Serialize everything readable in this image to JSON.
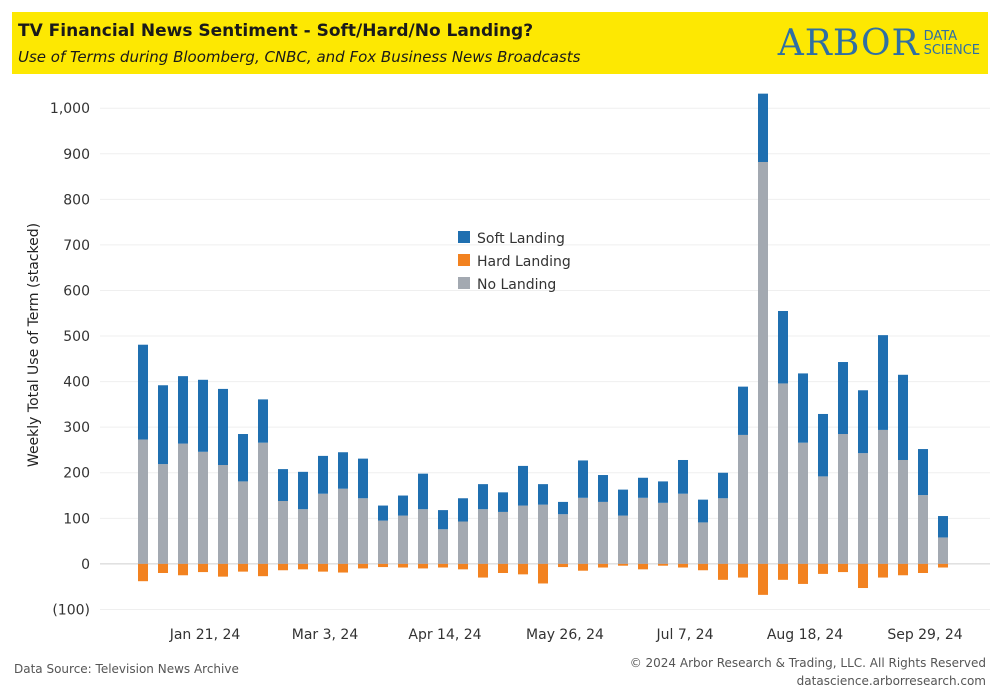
{
  "header": {
    "title": "TV Financial News Sentiment - Soft/Hard/No Landing?",
    "subtitle": "Use of Terms during Bloomberg, CNBC, and Fox Business News Broadcasts",
    "logo_main": "ARBOR",
    "logo_sub_1": "DATA",
    "logo_sub_2": "SCIENCE"
  },
  "footer": {
    "source": "Data Source: Television News Archive",
    "copyright": "© 2024 Arbor Research & Trading, LLC. All Rights Reserved",
    "website": "datascience.arborresearch.com"
  },
  "chart_data": {
    "type": "bar",
    "stacked": true,
    "ylabel": "Weekly Total Use of Term (stacked)",
    "ylim": [
      -110,
      1040
    ],
    "yticks": [
      -100,
      0,
      100,
      200,
      300,
      400,
      500,
      600,
      700,
      800,
      900,
      1000
    ],
    "ytick_labels": [
      "(100)",
      "0",
      "100",
      "200",
      "300",
      "400",
      "500",
      "600",
      "700",
      "800",
      "900",
      "1,000"
    ],
    "x_tick_labels": [
      {
        "index": 3,
        "label": "Jan 21, 24"
      },
      {
        "index": 9,
        "label": "Mar 3, 24"
      },
      {
        "index": 15,
        "label": "Apr 14, 24"
      },
      {
        "index": 21,
        "label": "May 26, 24"
      },
      {
        "index": 27,
        "label": "Jul 7, 24"
      },
      {
        "index": 33,
        "label": "Aug 18, 24"
      },
      {
        "index": 39,
        "label": "Sep 29, 24"
      }
    ],
    "grid": "horizontal",
    "legend_position": "center",
    "series": [
      {
        "name": "Soft Landing",
        "color": "#1f6fb0",
        "values": [
          208,
          173,
          148,
          158,
          167,
          104,
          95,
          70,
          82,
          83,
          80,
          87,
          33,
          44,
          78,
          42,
          51,
          55,
          43,
          87,
          45,
          27,
          82,
          59,
          57,
          44,
          47,
          74,
          50,
          56,
          106,
          150,
          159,
          152,
          137,
          158,
          138,
          208,
          187,
          101,
          47
        ]
      },
      {
        "name": "Hard Landing",
        "color": "#f28220",
        "values": [
          -38,
          -20,
          -25,
          -18,
          -28,
          -17,
          -27,
          -14,
          -12,
          -17,
          -19,
          -10,
          -7,
          -8,
          -10,
          -8,
          -12,
          -30,
          -20,
          -23,
          -43,
          -7,
          -15,
          -8,
          -4,
          -12,
          -4,
          -8,
          -14,
          -35,
          -30,
          -68,
          -35,
          -44,
          -22,
          -18,
          -53,
          -30,
          -25,
          -20,
          -8
        ]
      },
      {
        "name": "No Landing",
        "color": "#a3a9b1",
        "values": [
          273,
          219,
          264,
          246,
          217,
          181,
          266,
          138,
          120,
          154,
          165,
          144,
          95,
          106,
          120,
          76,
          93,
          120,
          114,
          128,
          130,
          109,
          145,
          136,
          106,
          145,
          134,
          154,
          91,
          144,
          283,
          882,
          396,
          266,
          192,
          285,
          243,
          294,
          228,
          151,
          58
        ]
      }
    ]
  }
}
